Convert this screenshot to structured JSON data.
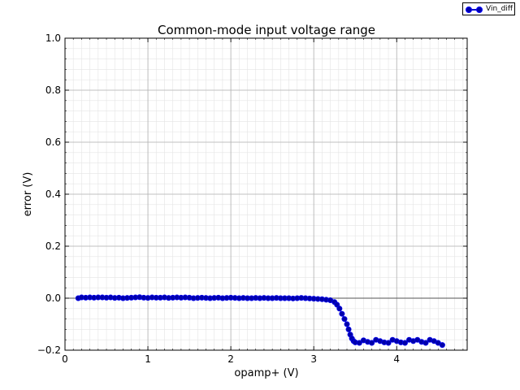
{
  "chart_data": {
    "type": "line",
    "title": "Common-mode input voltage range",
    "xlabel": "opamp+ (V)",
    "ylabel": "error (V)",
    "xlim": [
      0,
      4.85
    ],
    "ylim": [
      -0.2,
      1.0
    ],
    "xticks": [
      0,
      1,
      2,
      3,
      4
    ],
    "yticks": [
      -0.2,
      0.0,
      0.2,
      0.4,
      0.6,
      0.8,
      1.0
    ],
    "xtick_labels": [
      "0",
      "1",
      "2",
      "3",
      "4"
    ],
    "ytick_labels": [
      "−0.2",
      "0.0",
      "0.2",
      "0.4",
      "0.6",
      "0.8",
      "1.0"
    ],
    "grid": true,
    "minor_grid": true,
    "legend_position": "top-right outside",
    "series": [
      {
        "name": "Vin_diff",
        "color": "#0000cc",
        "marker": "circle",
        "x": [
          0.16,
          0.2,
          0.25,
          0.3,
          0.35,
          0.4,
          0.45,
          0.5,
          0.55,
          0.6,
          0.65,
          0.7,
          0.75,
          0.8,
          0.85,
          0.9,
          0.95,
          1.0,
          1.05,
          1.1,
          1.15,
          1.2,
          1.25,
          1.3,
          1.35,
          1.4,
          1.45,
          1.5,
          1.55,
          1.6,
          1.65,
          1.7,
          1.75,
          1.8,
          1.85,
          1.9,
          1.95,
          2.0,
          2.05,
          2.1,
          2.15,
          2.2,
          2.25,
          2.3,
          2.35,
          2.4,
          2.45,
          2.5,
          2.55,
          2.6,
          2.65,
          2.7,
          2.75,
          2.8,
          2.85,
          2.9,
          2.95,
          3.0,
          3.05,
          3.1,
          3.15,
          3.2,
          3.25,
          3.28,
          3.31,
          3.34,
          3.37,
          3.4,
          3.42,
          3.44,
          3.46,
          3.48,
          3.5,
          3.55,
          3.6,
          3.65,
          3.7,
          3.75,
          3.8,
          3.85,
          3.9,
          3.95,
          4.0,
          4.05,
          4.1,
          4.15,
          4.2,
          4.25,
          4.3,
          4.35,
          4.4,
          4.45,
          4.5,
          4.55
        ],
        "y": [
          0.0,
          0.003,
          0.002,
          0.003,
          0.002,
          0.003,
          0.003,
          0.002,
          0.003,
          0.001,
          0.002,
          0.0,
          0.001,
          0.002,
          0.003,
          0.004,
          0.002,
          0.001,
          0.003,
          0.002,
          0.002,
          0.003,
          0.001,
          0.002,
          0.003,
          0.002,
          0.003,
          0.002,
          0.0,
          0.001,
          0.002,
          0.001,
          0.0,
          0.001,
          0.002,
          0.0,
          0.001,
          0.002,
          0.001,
          0.0,
          0.001,
          0.0,
          0.0,
          0.001,
          0.0,
          0.001,
          0.0,
          0.0,
          0.001,
          0.0,
          0.0,
          0.0,
          -0.001,
          0.0,
          0.001,
          0.0,
          -0.001,
          -0.002,
          -0.003,
          -0.004,
          -0.006,
          -0.008,
          -0.015,
          -0.025,
          -0.04,
          -0.06,
          -0.08,
          -0.1,
          -0.12,
          -0.14,
          -0.155,
          -0.165,
          -0.17,
          -0.172,
          -0.162,
          -0.168,
          -0.172,
          -0.16,
          -0.165,
          -0.17,
          -0.172,
          -0.16,
          -0.165,
          -0.17,
          -0.172,
          -0.16,
          -0.165,
          -0.16,
          -0.168,
          -0.172,
          -0.16,
          -0.165,
          -0.172,
          -0.18
        ]
      }
    ]
  }
}
